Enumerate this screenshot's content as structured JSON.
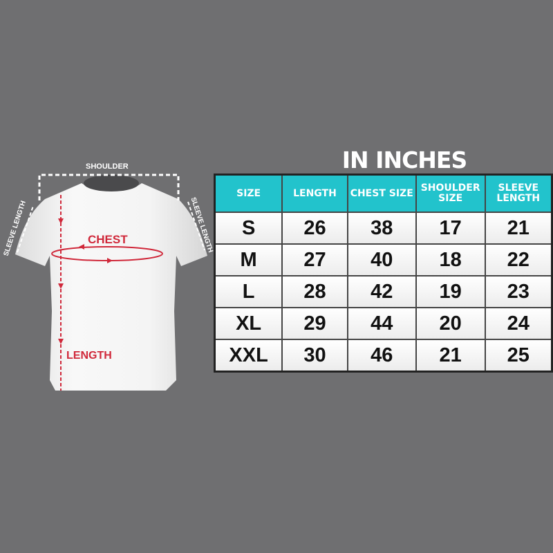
{
  "diagram": {
    "shoulder_label": "SHOULDER",
    "sleeve_left_label": "SLEEVE LENGTH",
    "sleeve_right_label": "SLEEVE LENGTH",
    "chest_label": "CHEST",
    "length_label": "LENGTH",
    "accent_color": "#d0283a"
  },
  "table": {
    "title": "IN INCHES",
    "header_color": "#22c3cc",
    "headers": [
      "SIZE",
      "LENGTH",
      "CHEST SIZE",
      "SHOULDER SIZE",
      "SLEEVE LENGTH"
    ],
    "rows": [
      [
        "S",
        "26",
        "38",
        "17",
        "21"
      ],
      [
        "M",
        "27",
        "40",
        "18",
        "22"
      ],
      [
        "L",
        "28",
        "42",
        "19",
        "23"
      ],
      [
        "XL",
        "29",
        "44",
        "20",
        "24"
      ],
      [
        "XXL",
        "30",
        "46",
        "21",
        "25"
      ]
    ]
  }
}
